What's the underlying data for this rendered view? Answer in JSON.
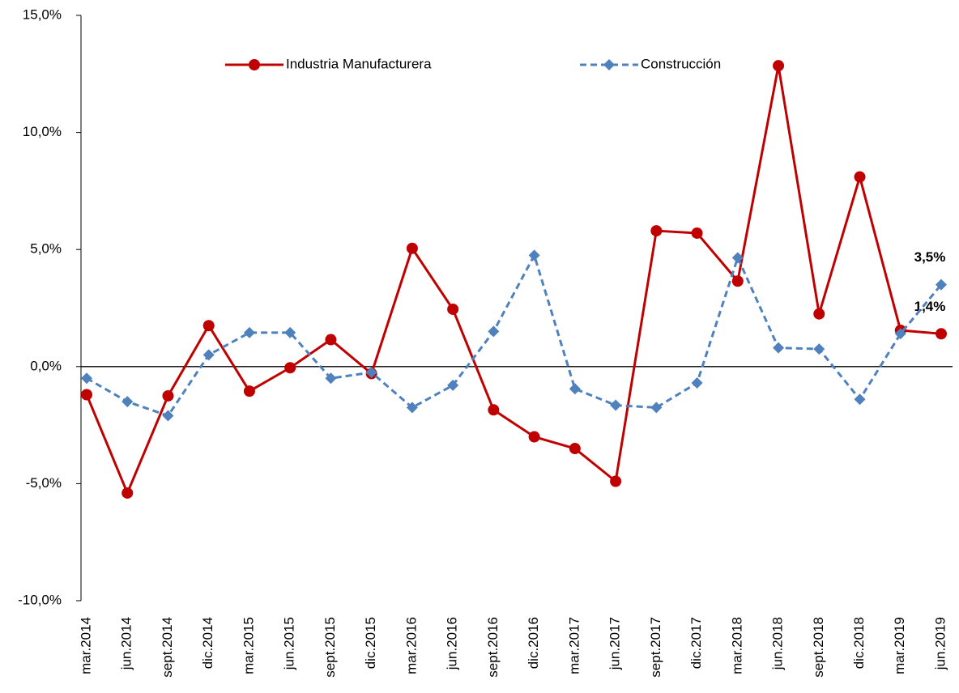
{
  "chart_data": {
    "type": "line",
    "categories": [
      "mar.2014",
      "jun.2014",
      "sept.2014",
      "dic.2014",
      "mar.2015",
      "jun.2015",
      "sept.2015",
      "dic.2015",
      "mar.2016",
      "jun.2016",
      "sept.2016",
      "dic.2016",
      "mar.2017",
      "jun.2017",
      "sept.2017",
      "dic.2017",
      "mar.2018",
      "jun.2018",
      "sept.2018",
      "dic.2018",
      "mar.2019",
      "jun.2019"
    ],
    "series": [
      {
        "name": "Industria Manufacturera",
        "color": "#c00000",
        "marker": "circle",
        "dashed": false,
        "values": [
          -1.2,
          -5.4,
          -1.25,
          1.75,
          -1.05,
          -0.05,
          1.15,
          -0.3,
          5.05,
          2.45,
          -1.85,
          -3.0,
          -3.5,
          -4.9,
          5.8,
          5.7,
          3.65,
          12.85,
          2.25,
          8.1,
          1.55,
          1.4
        ],
        "value_labels": [
          null,
          null,
          null,
          null,
          null,
          null,
          null,
          null,
          null,
          null,
          null,
          null,
          null,
          null,
          null,
          null,
          null,
          null,
          null,
          null,
          null,
          "1,4%"
        ]
      },
      {
        "name": "Construcción",
        "color": "#4f81bd",
        "marker": "diamond",
        "dashed": true,
        "values": [
          -0.5,
          -1.5,
          -2.1,
          0.5,
          1.45,
          1.45,
          -0.5,
          -0.25,
          -1.75,
          -0.8,
          1.5,
          4.75,
          -0.95,
          -1.65,
          -1.75,
          -0.7,
          4.65,
          0.8,
          0.75,
          -1.4,
          1.4,
          3.5
        ],
        "value_labels": [
          null,
          null,
          null,
          null,
          null,
          null,
          null,
          null,
          null,
          null,
          null,
          null,
          null,
          null,
          null,
          null,
          null,
          null,
          null,
          null,
          null,
          "3,5%"
        ]
      }
    ],
    "ylim": [
      -10,
      15
    ],
    "yticks": [
      {
        "value": -10,
        "label": "-10,0%"
      },
      {
        "value": -5,
        "label": "-5,0%"
      },
      {
        "value": 0,
        "label": "0,0%"
      },
      {
        "value": 5,
        "label": "5,0%"
      },
      {
        "value": 10,
        "label": "10,0%"
      },
      {
        "value": 15,
        "label": "15,0%"
      }
    ],
    "grid": false,
    "legend": "top"
  }
}
